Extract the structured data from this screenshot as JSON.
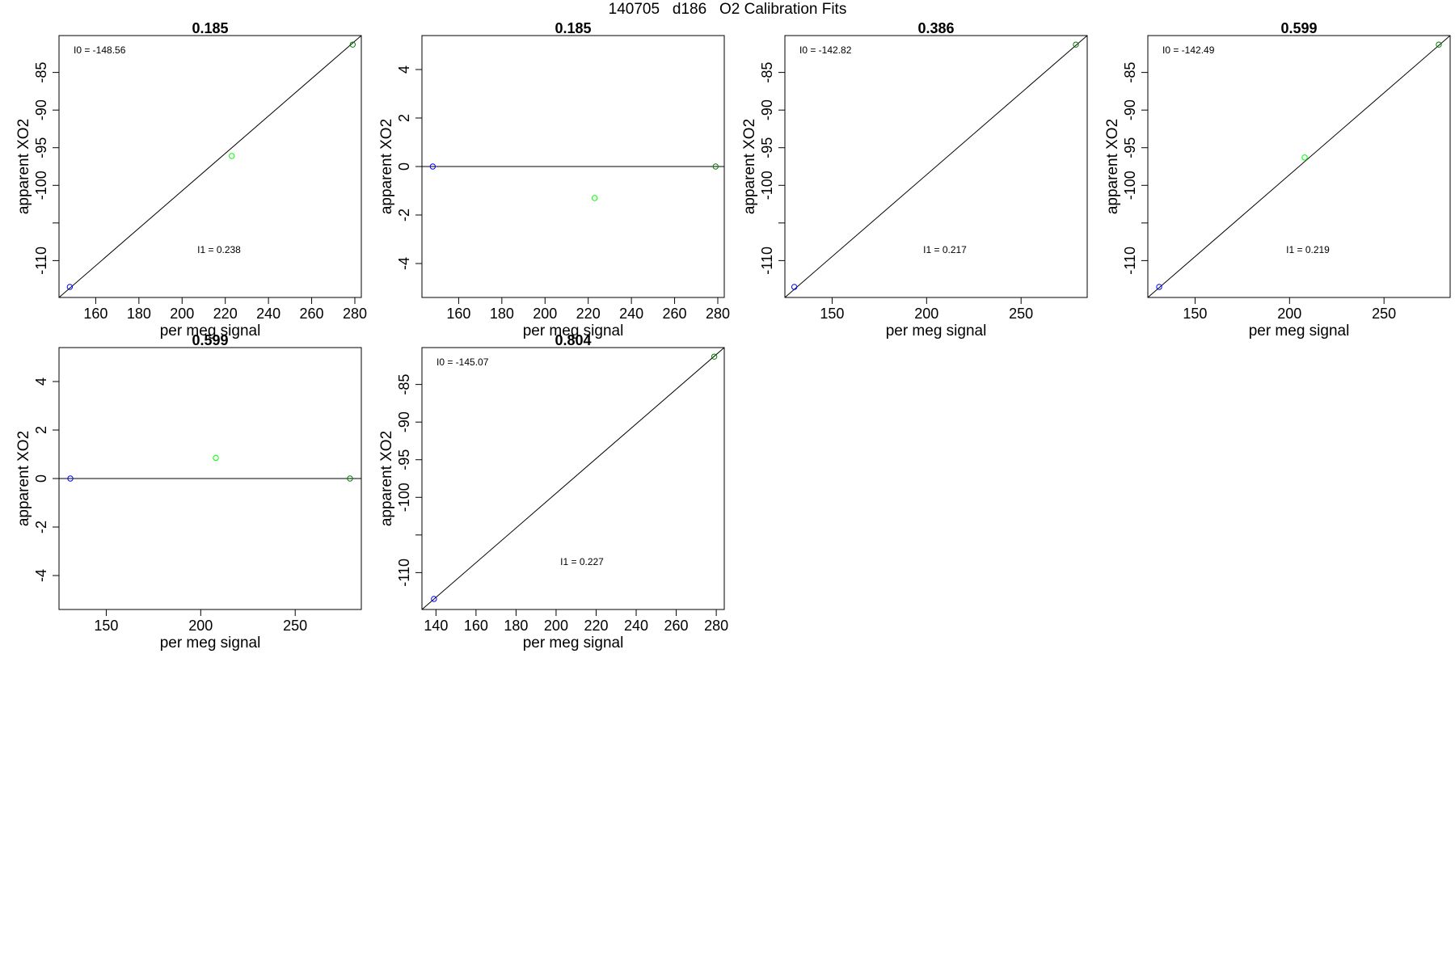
{
  "figure": {
    "title": "140705   d186   O2 Calibration Fits"
  },
  "chart_data": [
    {
      "type": "scatter",
      "title": "0.185",
      "xlabel": "per meg signal",
      "ylabel": "apparent XO2",
      "xlim": [
        143,
        283
      ],
      "ylim": [
        -114.9,
        -80.1
      ],
      "xticks": [
        160,
        180,
        200,
        220,
        240,
        260,
        280
      ],
      "yticks": [
        -85,
        -90,
        -95,
        -100,
        -105,
        -110
      ],
      "yticklabels": [
        "-85",
        "-90",
        "-95",
        "-100",
        "",
        "-110"
      ],
      "fit_line": {
        "from": [
          143,
          -114.9
        ],
        "to": [
          283,
          -80.1
        ]
      },
      "points": [
        {
          "x": 148,
          "y": -113.5,
          "color": "#0000ff"
        },
        {
          "x": 223,
          "y": -96.1,
          "color": "#00ff00"
        },
        {
          "x": 279,
          "y": -81.3,
          "color": "#008000"
        }
      ],
      "annotations": [
        {
          "text": "I0 =  -148.56",
          "pos": "top-left"
        },
        {
          "text": "I1 =  0.238",
          "pos": "lower-center"
        }
      ]
    },
    {
      "type": "scatter",
      "title": "0.185",
      "xlabel": "per meg signal",
      "ylabel": "apparent XO2",
      "xlim": [
        143,
        283
      ],
      "ylim": [
        -5.4,
        5.4
      ],
      "xticks": [
        160,
        180,
        200,
        220,
        240,
        260,
        280
      ],
      "yticks": [
        4,
        2,
        0,
        -2,
        -4
      ],
      "yticklabels": [
        "4",
        "2",
        "0",
        "-2",
        "-4"
      ],
      "fit_line": {
        "from": [
          143,
          0
        ],
        "to": [
          283,
          0
        ]
      },
      "points": [
        {
          "x": 148,
          "y": 0,
          "color": "#0000ff"
        },
        {
          "x": 223,
          "y": -1.3,
          "color": "#00ff00"
        },
        {
          "x": 279,
          "y": 0,
          "color": "#008000"
        }
      ],
      "annotations": []
    },
    {
      "type": "scatter",
      "title": "0.386",
      "xlabel": "per meg signal",
      "ylabel": "apparent XO2",
      "xlim": [
        125,
        285
      ],
      "ylim": [
        -114.9,
        -80.1
      ],
      "xticks": [
        150,
        200,
        250
      ],
      "yticks": [
        -85,
        -90,
        -95,
        -100,
        -105,
        -110
      ],
      "yticklabels": [
        "-85",
        "-90",
        "-95",
        "-100",
        "",
        "-110"
      ],
      "fit_line": {
        "from": [
          125,
          -114.9
        ],
        "to": [
          285,
          -80.1
        ]
      },
      "points": [
        {
          "x": 130,
          "y": -113.5,
          "color": "#0000ff"
        },
        {
          "x": 279,
          "y": -81.3,
          "color": "#008000"
        }
      ],
      "annotations": [
        {
          "text": "I0 =  -142.82",
          "pos": "top-left"
        },
        {
          "text": "I1 =  0.217",
          "pos": "lower-center"
        }
      ]
    },
    {
      "type": "scatter",
      "title": "0.599",
      "xlabel": "per meg signal",
      "ylabel": "apparent XO2",
      "xlim": [
        125,
        285
      ],
      "ylim": [
        -114.9,
        -80.1
      ],
      "xticks": [
        150,
        200,
        250
      ],
      "yticks": [
        -85,
        -90,
        -95,
        -100,
        -105,
        -110
      ],
      "yticklabels": [
        "-85",
        "-90",
        "-95",
        "-100",
        "",
        "-110"
      ],
      "fit_line": {
        "from": [
          125,
          -114.9
        ],
        "to": [
          285,
          -80.1
        ]
      },
      "points": [
        {
          "x": 131,
          "y": -113.5,
          "color": "#0000ff"
        },
        {
          "x": 208,
          "y": -96.3,
          "color": "#00ff00"
        },
        {
          "x": 279,
          "y": -81.3,
          "color": "#008000"
        }
      ],
      "annotations": [
        {
          "text": "I0 =  -142.49",
          "pos": "top-left"
        },
        {
          "text": "I1 =  0.219",
          "pos": "lower-center"
        }
      ]
    },
    {
      "type": "scatter",
      "title": "0.599",
      "xlabel": "per meg signal",
      "ylabel": "apparent XO2",
      "xlim": [
        125,
        285
      ],
      "ylim": [
        -5.4,
        5.4
      ],
      "xticks": [
        150,
        200,
        250
      ],
      "yticks": [
        4,
        2,
        0,
        -2,
        -4
      ],
      "yticklabels": [
        "4",
        "2",
        "0",
        "-2",
        "-4"
      ],
      "fit_line": {
        "from": [
          125,
          0
        ],
        "to": [
          285,
          0
        ]
      },
      "points": [
        {
          "x": 131,
          "y": 0,
          "color": "#0000ff"
        },
        {
          "x": 208,
          "y": 0.85,
          "color": "#00ff00"
        },
        {
          "x": 279,
          "y": 0,
          "color": "#008000"
        }
      ],
      "annotations": []
    },
    {
      "type": "scatter",
      "title": "0.804",
      "xlabel": "per meg signal",
      "ylabel": "apparent XO2",
      "xlim": [
        133,
        284
      ],
      "ylim": [
        -114.9,
        -80.1
      ],
      "xticks": [
        140,
        160,
        180,
        200,
        220,
        240,
        260,
        280
      ],
      "yticks": [
        -85,
        -90,
        -95,
        -100,
        -105,
        -110
      ],
      "yticklabels": [
        "-85",
        "-90",
        "-95",
        "-100",
        "",
        "-110"
      ],
      "fit_line": {
        "from": [
          133,
          -114.9
        ],
        "to": [
          284,
          -80.1
        ]
      },
      "points": [
        {
          "x": 139,
          "y": -113.5,
          "color": "#0000ff"
        },
        {
          "x": 279,
          "y": -81.3,
          "color": "#008000"
        }
      ],
      "annotations": [
        {
          "text": "I0 =  -145.07",
          "pos": "top-left"
        },
        {
          "text": "I1 =  0.227",
          "pos": "lower-center"
        }
      ]
    }
  ]
}
